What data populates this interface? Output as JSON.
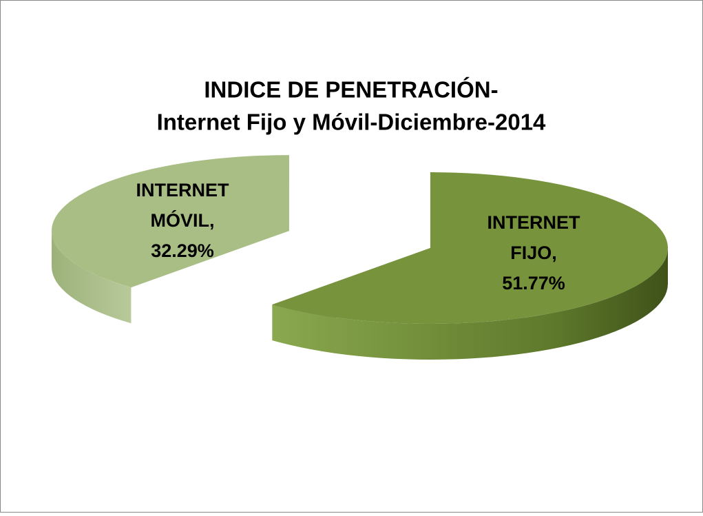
{
  "chart_data": {
    "type": "pie3d",
    "title": [
      "INDICE DE PENETRACIÓN-",
      "Internet Fijo y Móvil-Diciembre-2014"
    ],
    "categories": [
      "INTERNET FIJO,",
      "INTERNET MÓVIL,"
    ],
    "values": [
      51.77,
      32.29
    ],
    "value_labels": [
      "51.77%",
      "32.29%"
    ],
    "colors": [
      "#77933c",
      "#a9be85"
    ],
    "exploded": [
      false,
      true
    ]
  }
}
